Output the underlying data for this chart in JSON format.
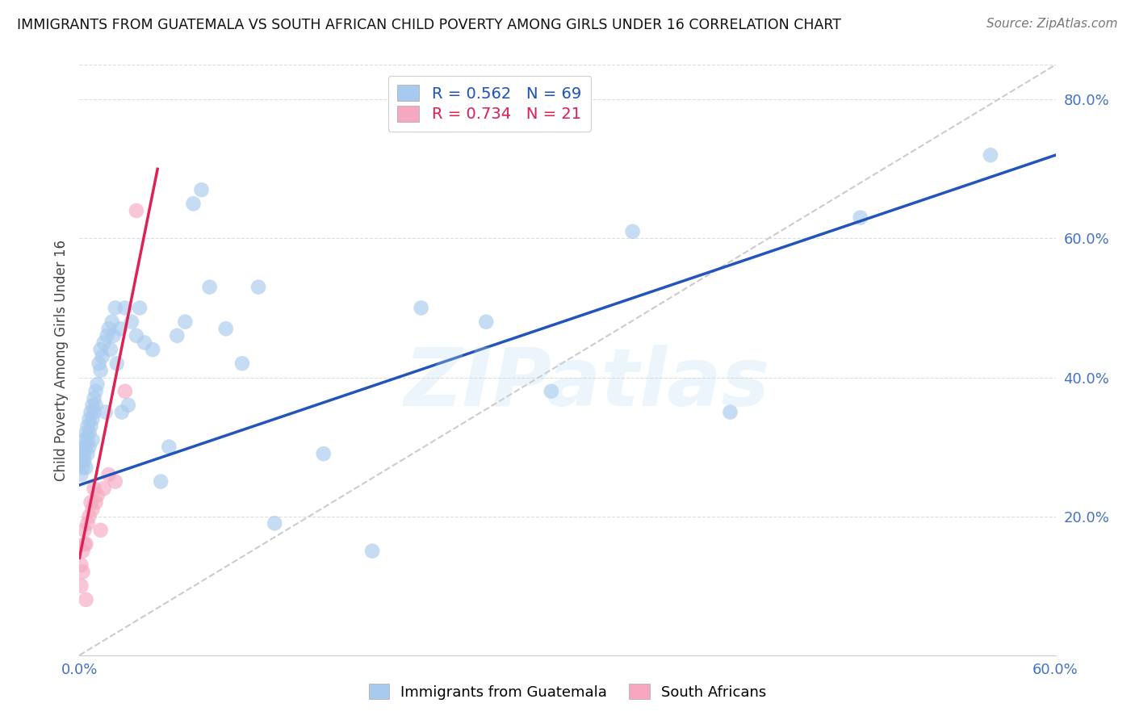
{
  "title": "IMMIGRANTS FROM GUATEMALA VS SOUTH AFRICAN CHILD POVERTY AMONG GIRLS UNDER 16 CORRELATION CHART",
  "source": "Source: ZipAtlas.com",
  "ylabel": "Child Poverty Among Girls Under 16",
  "xlim": [
    0.0,
    0.6
  ],
  "ylim": [
    0.0,
    0.85
  ],
  "blue_R": 0.562,
  "blue_N": 69,
  "pink_R": 0.734,
  "pink_N": 21,
  "blue_color": "#A8CAEE",
  "pink_color": "#F5A8C0",
  "blue_line_color": "#2255BB",
  "pink_line_color": "#DD2255",
  "legend_label_blue": "Immigrants from Guatemala",
  "legend_label_pink": "South Africans",
  "watermark": "ZIPatlas",
  "blue_scatter_x": [
    0.001,
    0.001,
    0.002,
    0.002,
    0.002,
    0.003,
    0.003,
    0.003,
    0.004,
    0.004,
    0.004,
    0.005,
    0.005,
    0.005,
    0.006,
    0.006,
    0.006,
    0.007,
    0.007,
    0.008,
    0.008,
    0.008,
    0.009,
    0.009,
    0.01,
    0.01,
    0.011,
    0.012,
    0.013,
    0.013,
    0.014,
    0.015,
    0.016,
    0.017,
    0.018,
    0.019,
    0.02,
    0.021,
    0.022,
    0.023,
    0.025,
    0.026,
    0.028,
    0.03,
    0.032,
    0.035,
    0.037,
    0.04,
    0.045,
    0.05,
    0.055,
    0.06,
    0.065,
    0.07,
    0.075,
    0.08,
    0.09,
    0.1,
    0.11,
    0.12,
    0.15,
    0.18,
    0.21,
    0.25,
    0.29,
    0.34,
    0.4,
    0.48,
    0.56
  ],
  "blue_scatter_y": [
    0.26,
    0.29,
    0.27,
    0.3,
    0.28,
    0.31,
    0.29,
    0.28,
    0.3,
    0.32,
    0.27,
    0.33,
    0.31,
    0.29,
    0.34,
    0.32,
    0.3,
    0.35,
    0.33,
    0.36,
    0.34,
    0.31,
    0.37,
    0.35,
    0.38,
    0.36,
    0.39,
    0.42,
    0.44,
    0.41,
    0.43,
    0.45,
    0.35,
    0.46,
    0.47,
    0.44,
    0.48,
    0.46,
    0.5,
    0.42,
    0.47,
    0.35,
    0.5,
    0.36,
    0.48,
    0.46,
    0.5,
    0.45,
    0.44,
    0.25,
    0.3,
    0.46,
    0.48,
    0.65,
    0.67,
    0.53,
    0.47,
    0.42,
    0.53,
    0.19,
    0.29,
    0.15,
    0.5,
    0.48,
    0.38,
    0.61,
    0.35,
    0.63,
    0.72
  ],
  "pink_scatter_x": [
    0.001,
    0.001,
    0.002,
    0.002,
    0.003,
    0.003,
    0.004,
    0.004,
    0.005,
    0.006,
    0.007,
    0.008,
    0.009,
    0.01,
    0.011,
    0.013,
    0.015,
    0.018,
    0.022,
    0.028,
    0.035
  ],
  "pink_scatter_y": [
    0.13,
    0.1,
    0.15,
    0.12,
    0.18,
    0.16,
    0.16,
    0.08,
    0.19,
    0.2,
    0.22,
    0.21,
    0.24,
    0.22,
    0.23,
    0.18,
    0.24,
    0.26,
    0.25,
    0.38,
    0.64
  ]
}
